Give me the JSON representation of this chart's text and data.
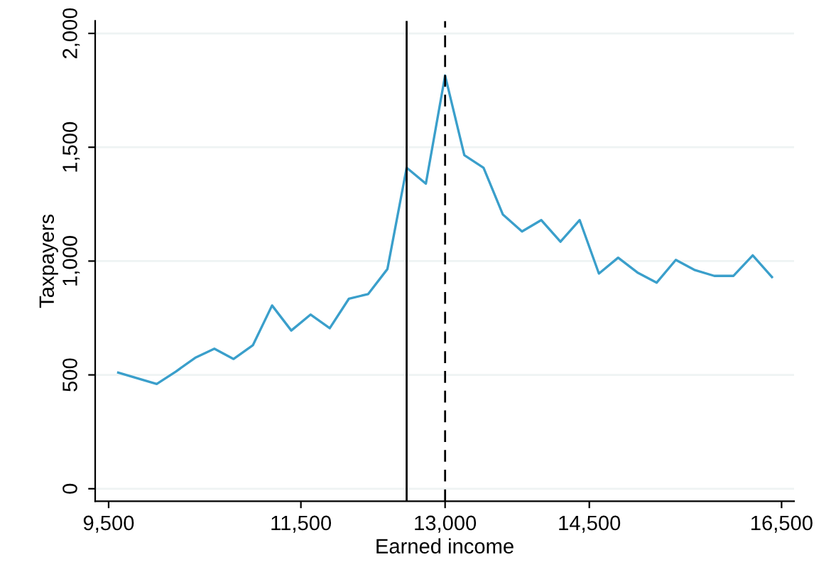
{
  "chart_data": {
    "type": "line",
    "xlabel": "Earned income",
    "ylabel": "Taxpayers",
    "x": [
      9600,
      9800,
      10000,
      10200,
      10400,
      10600,
      10800,
      11000,
      11200,
      11400,
      11600,
      11800,
      12000,
      12200,
      12400,
      12600,
      12800,
      13000,
      13200,
      13400,
      13600,
      13800,
      14000,
      14200,
      14400,
      14600,
      14800,
      15000,
      15200,
      15400,
      15600,
      15800,
      16000,
      16200,
      16400
    ],
    "series": [
      {
        "color": "#3a9fcb",
        "values": [
          510,
          485,
          460,
          515,
          575,
          615,
          570,
          630,
          805,
          695,
          765,
          705,
          835,
          855,
          965,
          1410,
          1340,
          1815,
          1465,
          1410,
          1205,
          1130,
          1180,
          1085,
          1180,
          945,
          1015,
          950,
          905,
          1005,
          960,
          935,
          935,
          1025,
          930
        ]
      }
    ],
    "xlim": [
      9360,
      16630
    ],
    "ylim": [
      -55,
      2055
    ],
    "xticks": [
      {
        "value": 9500,
        "label": "9,500"
      },
      {
        "value": 11500,
        "label": "11,500"
      },
      {
        "value": 13000,
        "label": "13,000"
      },
      {
        "value": 14500,
        "label": "14,500"
      },
      {
        "value": 16500,
        "label": "16,500"
      }
    ],
    "yticks": [
      0,
      500,
      {
        "value": 1000,
        "label": "1,000"
      },
      {
        "value": 1500,
        "label": "1,500"
      },
      {
        "value": 2000,
        "label": "2,000"
      }
    ],
    "ref_lines": [
      {
        "axis": "x",
        "value": 12600,
        "color": "#000000",
        "line_style": "solid"
      },
      {
        "axis": "x",
        "value": 13000,
        "color": "#000000",
        "line_style": "dashed"
      }
    ],
    "grid": "y",
    "marker": "none",
    "line_style": "solid"
  }
}
